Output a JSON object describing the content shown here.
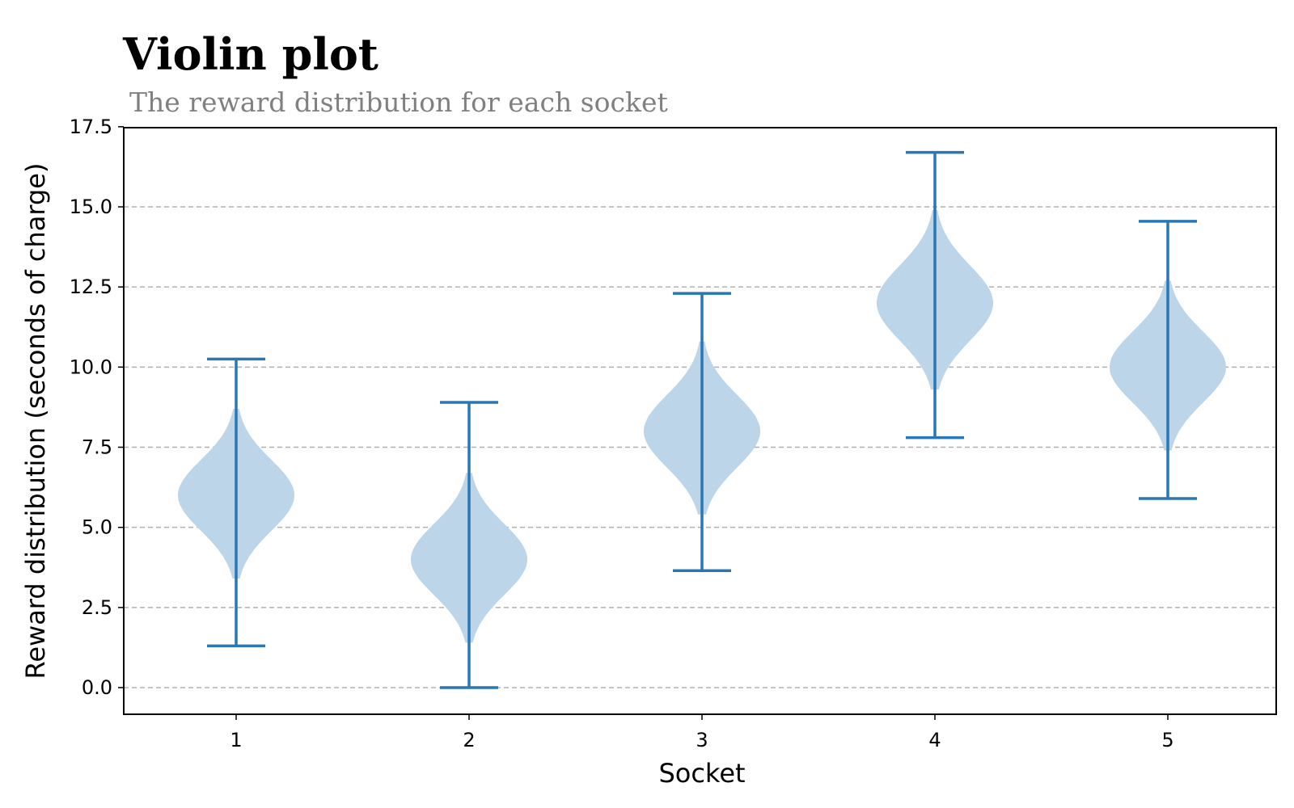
{
  "chart_data": {
    "type": "violin",
    "title": "Violin plot",
    "subtitle": "The reward distribution for each socket",
    "xlabel": "Socket",
    "ylabel": "Reward distribution (seconds of charge)",
    "categories": [
      "1",
      "2",
      "3",
      "4",
      "5"
    ],
    "ylim": [
      -0.8,
      17.5
    ],
    "yticks": [
      "0.0",
      "2.5",
      "5.0",
      "7.5",
      "10.0",
      "12.5",
      "15.0",
      "17.5"
    ],
    "grid": "horizontal dashed",
    "violins": [
      {
        "category": "1",
        "min": 1.3,
        "max": 10.25,
        "center": 6.0,
        "kde_low": 3.4,
        "kde_high": 8.7
      },
      {
        "category": "2",
        "min": 0.0,
        "max": 8.9,
        "center": 4.0,
        "kde_low": 1.4,
        "kde_high": 6.7
      },
      {
        "category": "3",
        "min": 3.65,
        "max": 12.3,
        "center": 8.0,
        "kde_low": 5.4,
        "kde_high": 10.8
      },
      {
        "category": "4",
        "min": 7.8,
        "max": 16.7,
        "center": 12.0,
        "kde_low": 9.3,
        "kde_high": 14.9
      },
      {
        "category": "5",
        "min": 5.9,
        "max": 14.55,
        "center": 10.0,
        "kde_low": 7.4,
        "kde_high": 12.7
      }
    ],
    "colors": {
      "body": "#bcd5e9",
      "lines": "#2a77b4",
      "grid": "#b0b0b0"
    }
  }
}
